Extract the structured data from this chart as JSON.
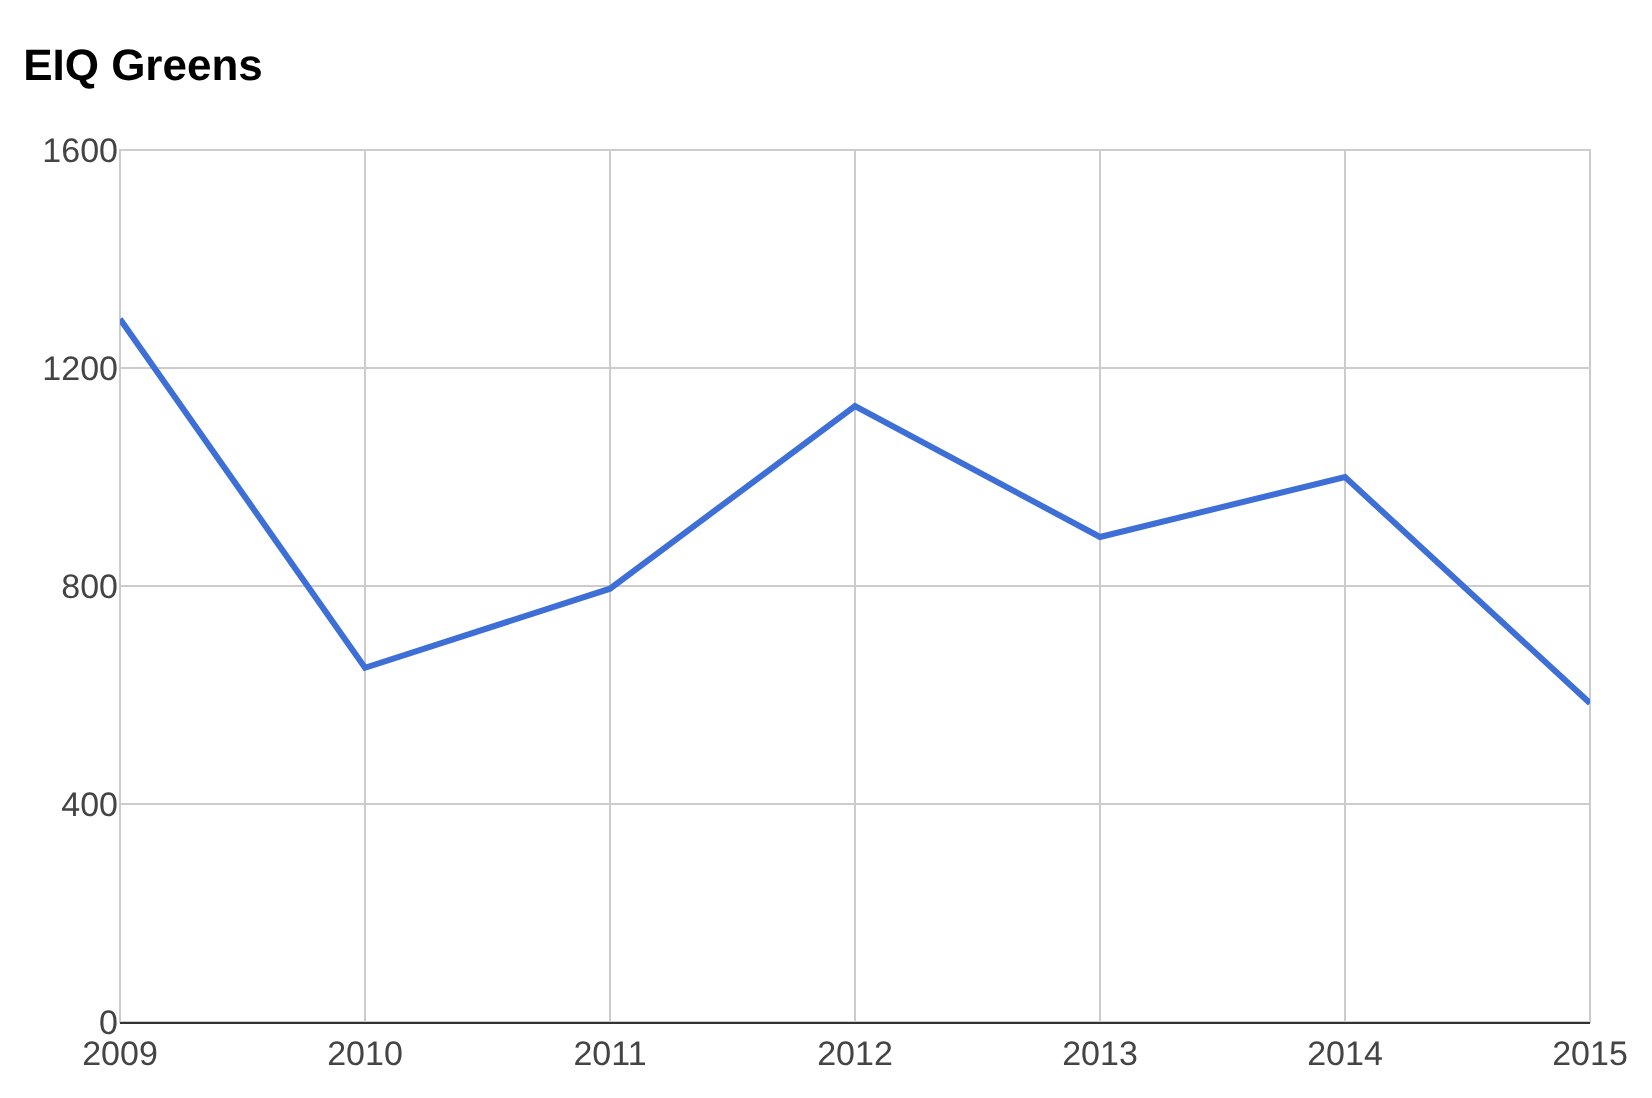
{
  "chart_data": {
    "type": "line",
    "title": "EIQ Greens",
    "x": [
      2009,
      2010,
      2011,
      2012,
      2013,
      2014,
      2015
    ],
    "series": [
      {
        "color": "#3d6fd6",
        "values": [
          1290,
          650,
          795,
          1130,
          890,
          1000,
          585
        ]
      }
    ],
    "xlim": [
      2009,
      2015
    ],
    "xticks": [
      2009,
      2010,
      2011,
      2012,
      2013,
      2014,
      2015
    ],
    "ylim": [
      0,
      1600
    ],
    "yticks": [
      0,
      400,
      800,
      1200,
      1600
    ],
    "grid": true,
    "legend": false,
    "marker": "none",
    "line_style": "solid"
  }
}
